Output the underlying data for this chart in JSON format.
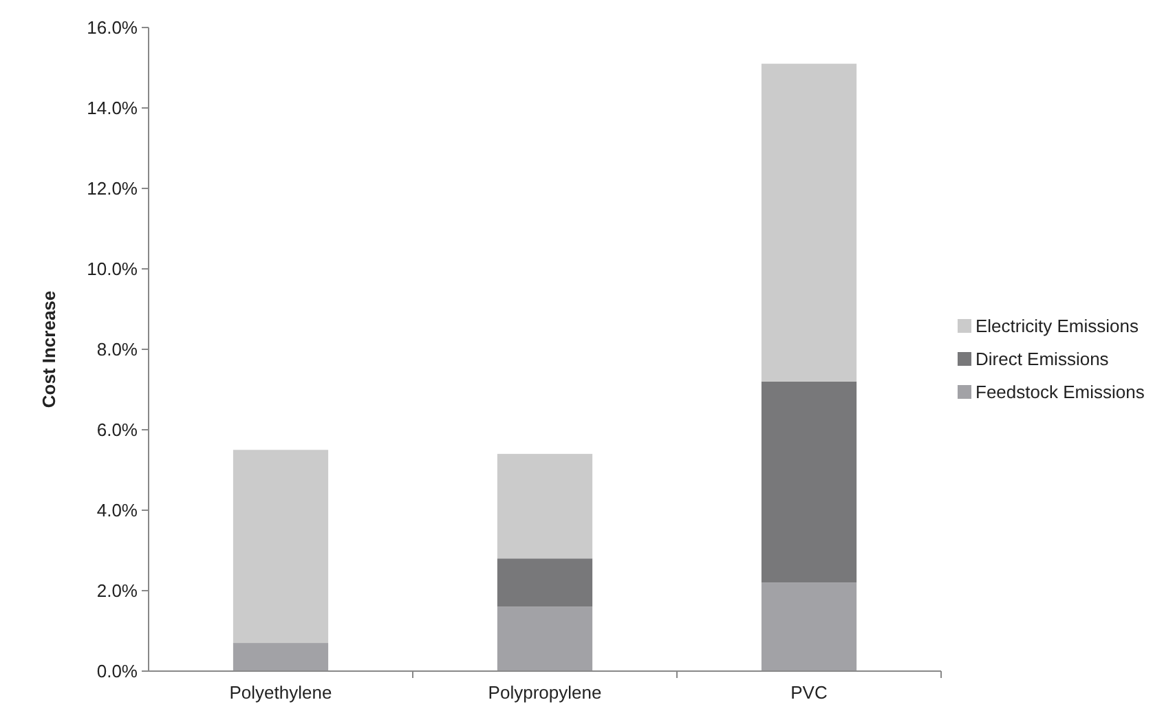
{
  "chart_data": {
    "type": "bar",
    "stacked": true,
    "ylabel": "Cost Increase",
    "categories": [
      "Polyethylene",
      "Polypropylene",
      "PVC"
    ],
    "series": [
      {
        "name": "Feedstock Emissions",
        "color": "#a2a2a6",
        "values": [
          0.7,
          1.6,
          2.2
        ]
      },
      {
        "name": "Direct Emissions",
        "color": "#78787a",
        "values": [
          0,
          1.2,
          5.0
        ]
      },
      {
        "name": "Electricity Emissions",
        "color": "#cbcbcb",
        "values": [
          4.8,
          2.6,
          7.9
        ]
      }
    ],
    "ylim": [
      0,
      16
    ],
    "yticks": [
      {
        "value": 0,
        "label": "0.0%"
      },
      {
        "value": 2,
        "label": "2.0%"
      },
      {
        "value": 4,
        "label": "4.0%"
      },
      {
        "value": 6,
        "label": "6.0%"
      },
      {
        "value": 8,
        "label": "8.0%"
      },
      {
        "value": 10,
        "label": "10.0%"
      },
      {
        "value": 12,
        "label": "12.0%"
      },
      {
        "value": 14,
        "label": "14.0%"
      },
      {
        "value": 16,
        "label": "16.0%"
      }
    ],
    "grid": false,
    "legend": "right"
  }
}
